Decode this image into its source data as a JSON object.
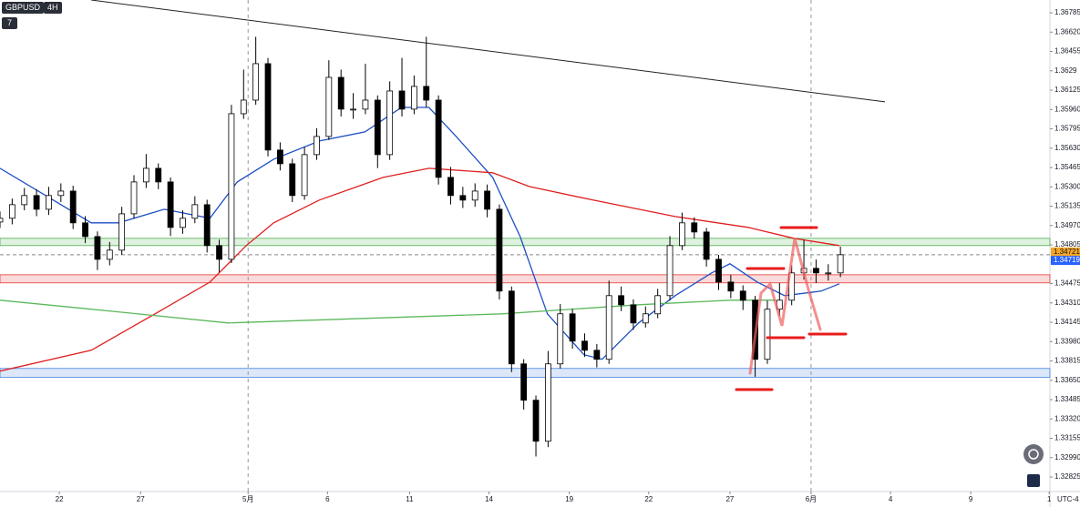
{
  "header": {
    "symbol": "GBPUSD",
    "interval": "4H",
    "indicator_count": 7
  },
  "chart_data": {
    "type": "candlestick",
    "open": [
      1.35,
      1.35032,
      1.35148,
      1.35226,
      1.35109,
      1.35226,
      1.35264,
      1.34993,
      1.34876,
      1.34682,
      1.3476,
      1.3507,
      1.35342,
      1.35458,
      1.35342,
      1.34954,
      1.35032,
      1.35148,
      1.34799,
      1.34682,
      1.35924,
      1.3604,
      1.36351,
      1.35614,
      1.35497,
      1.35226,
      1.35575,
      1.3573,
      1.36234,
      1.35963,
      1.35963,
      1.3604,
      1.35575,
      1.36118,
      1.35963,
      1.36157,
      1.3604,
      1.35381,
      1.35226,
      1.35187,
      1.35264,
      1.35109,
      1.34411,
      1.3379,
      1.3348,
      1.3313,
      1.3379,
      1.34217,
      1.33984,
      1.33906,
      1.33829,
      1.34372,
      1.34294,
      1.34139,
      1.34217,
      1.34372,
      1.34799,
      1.34993,
      1.34915,
      1.34682,
      1.34488,
      1.34411,
      1.34333,
      1.33829,
      1.34256,
      1.34333,
      1.34566,
      1.34605,
      1.34566,
      1.34566
    ],
    "high": [
      1.3509,
      1.352,
      1.3529,
      1.3528,
      1.353,
      1.3533,
      1.3531,
      1.3505,
      1.3492,
      1.3483,
      1.3513,
      1.354,
      1.3558,
      1.355,
      1.3538,
      1.351,
      1.3522,
      1.3519,
      1.3485,
      1.36,
      1.363,
      1.3658,
      1.364,
      1.3568,
      1.3554,
      1.3564,
      1.358,
      1.3638,
      1.363,
      1.361,
      1.3635,
      1.3608,
      1.362,
      1.364,
      1.3625,
      1.3658,
      1.3608,
      1.3547,
      1.353,
      1.3533,
      1.3532,
      1.3515,
      1.3445,
      1.3383,
      1.3352,
      1.339,
      1.343,
      1.3426,
      1.3405,
      1.3396,
      1.345,
      1.3445,
      1.3434,
      1.3428,
      1.3443,
      1.3488,
      1.3508,
      1.3504,
      1.3495,
      1.3472,
      1.3455,
      1.3446,
      1.3437,
      1.3433,
      1.3448,
      1.3463,
      1.3485,
      1.3468,
      1.3464,
      1.3479
    ],
    "low": [
      1.3495,
      1.3498,
      1.351,
      1.3505,
      1.3506,
      1.3517,
      1.3494,
      1.3482,
      1.3459,
      1.3463,
      1.3472,
      1.3503,
      1.3529,
      1.3528,
      1.3488,
      1.349,
      1.3499,
      1.3474,
      1.3457,
      1.3465,
      1.3588,
      1.36,
      1.3556,
      1.3544,
      1.3517,
      1.3519,
      1.3553,
      1.357,
      1.359,
      1.3588,
      1.3592,
      1.3546,
      1.3553,
      1.359,
      1.3592,
      1.3598,
      1.3532,
      1.3515,
      1.3512,
      1.3513,
      1.3504,
      1.3434,
      1.3372,
      1.334,
      1.33,
      1.3308,
      1.3375,
      1.3392,
      1.3385,
      1.3376,
      1.3379,
      1.3424,
      1.3408,
      1.341,
      1.3418,
      1.3433,
      1.3476,
      1.3486,
      1.3462,
      1.3442,
      1.3435,
      1.3425,
      1.3368,
      1.3379,
      1.342,
      1.3429,
      1.3451,
      1.3448,
      1.345,
      1.3453
    ],
    "close": [
      1.35032,
      1.35148,
      1.35226,
      1.35109,
      1.35226,
      1.35264,
      1.34993,
      1.34876,
      1.34682,
      1.3476,
      1.3507,
      1.35342,
      1.35458,
      1.35342,
      1.34954,
      1.35032,
      1.35148,
      1.34799,
      1.34682,
      1.35924,
      1.3604,
      1.36351,
      1.35614,
      1.35497,
      1.35226,
      1.35575,
      1.3573,
      1.36234,
      1.35963,
      1.35963,
      1.3604,
      1.35575,
      1.36118,
      1.35963,
      1.36157,
      1.3604,
      1.35381,
      1.35226,
      1.35187,
      1.35264,
      1.35109,
      1.34411,
      1.3379,
      1.3348,
      1.3313,
      1.3379,
      1.34217,
      1.33984,
      1.33906,
      1.33829,
      1.34372,
      1.34294,
      1.34139,
      1.34217,
      1.34372,
      1.34799,
      1.34993,
      1.34915,
      1.34682,
      1.34488,
      1.34411,
      1.34333,
      1.33829,
      1.34256,
      1.34333,
      1.34566,
      1.34605,
      1.34566,
      1.34566,
      1.34721
    ],
    "up_color": "#ffffff",
    "down_color": "#000000",
    "xlim": [
      0,
      86.2
    ],
    "ylim": [
      1.32701,
      1.36894
    ],
    "xticks": [
      {
        "value": 4.87,
        "label": "22"
      },
      {
        "value": 11.54,
        "label": "27"
      },
      {
        "value": 20.37,
        "label": "5月"
      },
      {
        "value": 26.89,
        "label": "6"
      },
      {
        "value": 33.63,
        "label": "11"
      },
      {
        "value": 40.15,
        "label": "14"
      },
      {
        "value": 46.74,
        "label": "19"
      },
      {
        "value": 53.26,
        "label": "22"
      },
      {
        "value": 59.93,
        "label": "27"
      },
      {
        "value": 66.59,
        "label": "6月"
      },
      {
        "value": 73.11,
        "label": "4"
      },
      {
        "value": 79.7,
        "label": "9"
      },
      {
        "value": 86.14,
        "label": "1"
      }
    ],
    "yticks": [
      1.36785,
      {
        "value": 1.3662,
        "label": "1.36620"
      },
      1.36455,
      1.3629,
      1.36125,
      {
        "value": 1.3596,
        "label": "1.35960"
      },
      1.35795,
      {
        "value": 1.3563,
        "label": "1.35630"
      },
      1.35465,
      {
        "value": 1.353,
        "label": "1.35300"
      },
      1.35135,
      {
        "value": 1.3497,
        "label": "1.34970"
      },
      1.34805,
      1.34475,
      {
        "value": 1.3431,
        "label": "1.34310"
      },
      1.34145,
      {
        "value": 1.3398,
        "label": "1.33980"
      },
      1.33815,
      {
        "value": 1.3365,
        "label": "1.33650"
      },
      1.33485,
      {
        "value": 1.3332,
        "label": "1.33320"
      },
      1.33155,
      {
        "value": 1.3299,
        "label": "1.32990"
      },
      1.32825
    ],
    "moving_averages": [
      {
        "color": "#1e4fc4",
        "x": [
          0,
          3.75,
          7.49,
          9.74,
          13.48,
          17.23,
          19.48,
          22.47,
          26.22,
          29.96,
          32.96,
          35.21,
          37.45,
          40.45,
          42.7,
          44.94,
          47.94,
          49.44,
          52.43,
          55.43,
          58.43,
          59.93,
          62.17,
          64.42,
          67.42,
          68.91
        ],
        "values": [
          1.35458,
          1.35226,
          1.34993,
          1.34993,
          1.35109,
          1.35032,
          1.35342,
          1.35536,
          1.35691,
          1.35769,
          1.35978,
          1.35978,
          1.3573,
          1.35381,
          1.34876,
          1.34217,
          1.33868,
          1.33829,
          1.34139,
          1.34372,
          1.34566,
          1.34644,
          1.34488,
          1.34372,
          1.34411,
          1.34473
        ]
      },
      {
        "color": "#e01e1e",
        "x": [
          0,
          7.49,
          12.73,
          17.23,
          20.22,
          22.47,
          26.22,
          31.46,
          35.21,
          40.45,
          43.45,
          48.69,
          55.43,
          61.42,
          65.17,
          68.91
        ],
        "values": [
          1.33728,
          1.33906,
          1.34217,
          1.34488,
          1.34799,
          1.34993,
          1.35187,
          1.35381,
          1.35458,
          1.3542,
          1.35303,
          1.35187,
          1.35047,
          1.34954,
          1.34861,
          1.34799
        ]
      },
      {
        "color": "#5cb85c",
        "x": [
          0,
          7.49,
          18.73,
          29.96,
          41.2,
          52.43,
          59.93,
          63.67
        ],
        "values": [
          1.34333,
          1.34256,
          1.34139,
          1.34178,
          1.34217,
          1.34294,
          1.34333,
          1.34333
        ]
      }
    ],
    "zones": [
      {
        "from": 1.34799,
        "to": 1.34861,
        "color": "#4caf50"
      },
      {
        "from": 1.34481,
        "to": 1.3455,
        "color": "#e53935"
      },
      {
        "from": 1.33674,
        "to": 1.33751,
        "color": "#3f7fe0"
      }
    ],
    "trendline": {
      "x": [
        7.49,
        72.66
      ],
      "values": [
        1.36894,
        1.36025
      ]
    },
    "price_labels": [
      {
        "price": 1.34721,
        "color": "#f5a623"
      },
      {
        "price": 1.34719,
        "color": "#2962ff"
      }
    ],
    "timezone": "UTC-4"
  }
}
